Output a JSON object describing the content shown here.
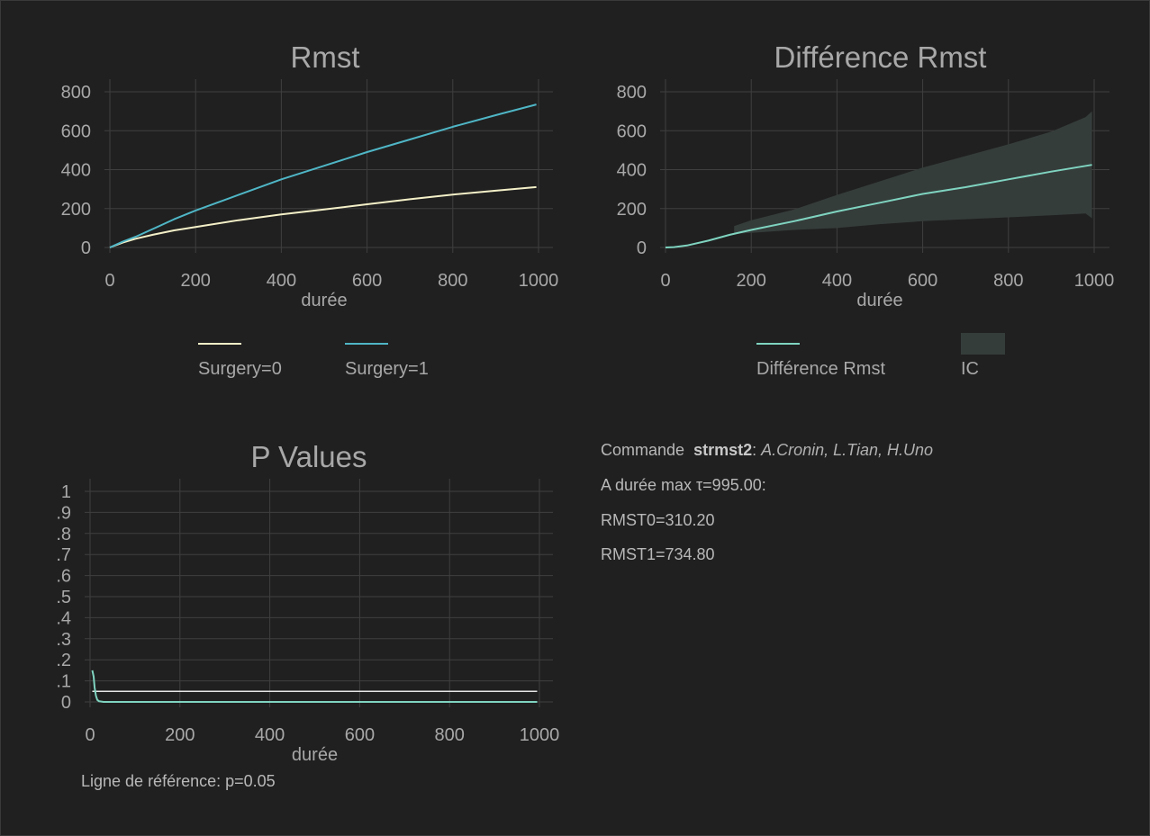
{
  "colors": {
    "background": "#202020",
    "grid": "#3f3f3f",
    "text": "#a8a8a8",
    "surgery0": "#f4f0c8",
    "surgery1": "#4fb6c6",
    "diff": "#7fd4c0",
    "ci_band": "#353d3b",
    "pvalue": "#7fd4c0",
    "refline": "#e6e6e6"
  },
  "chart_data": [
    {
      "type": "line",
      "title": "Rmst",
      "xlabel": "durée",
      "ylabel": "",
      "xlim": [
        0,
        1000
      ],
      "ylim": [
        0,
        800
      ],
      "xticks": [
        0,
        200,
        400,
        600,
        800,
        1000
      ],
      "yticks": [
        0,
        200,
        400,
        600,
        800
      ],
      "xtick_labels": [
        "0",
        "200",
        "400",
        "600",
        "800",
        "1000"
      ],
      "ytick_labels": [
        "0",
        "200",
        "400",
        "600",
        "800"
      ],
      "grid": true,
      "legend_position": "bottom",
      "series": [
        {
          "name": "Surgery=0",
          "color": "#f4f0c8",
          "x": [
            0,
            30,
            60,
            100,
            150,
            200,
            300,
            400,
            500,
            600,
            700,
            800,
            900,
            995
          ],
          "y": [
            0,
            25,
            45,
            65,
            88,
            105,
            140,
            170,
            195,
            222,
            248,
            272,
            292,
            310.2
          ]
        },
        {
          "name": "Surgery=1",
          "color": "#4fb6c6",
          "x": [
            0,
            30,
            60,
            100,
            150,
            200,
            300,
            400,
            500,
            600,
            700,
            800,
            900,
            995
          ],
          "y": [
            0,
            30,
            55,
            95,
            145,
            190,
            270,
            350,
            420,
            490,
            555,
            620,
            680,
            734.8
          ]
        }
      ]
    },
    {
      "type": "area",
      "title": "Différence Rmst",
      "xlabel": "durée",
      "ylabel": "",
      "xlim": [
        0,
        1000
      ],
      "ylim": [
        0,
        800
      ],
      "xticks": [
        0,
        200,
        400,
        600,
        800,
        1000
      ],
      "yticks": [
        0,
        200,
        400,
        600,
        800
      ],
      "xtick_labels": [
        "0",
        "200",
        "400",
        "600",
        "800",
        "1000"
      ],
      "ytick_labels": [
        "0",
        "200",
        "400",
        "600",
        "800"
      ],
      "grid": true,
      "legend_position": "bottom",
      "series": [
        {
          "name": "Différence Rmst",
          "color": "#7fd4c0",
          "x": [
            0,
            20,
            50,
            100,
            150,
            200,
            300,
            400,
            500,
            600,
            700,
            800,
            900,
            995
          ],
          "y": [
            0,
            2,
            10,
            35,
            65,
            90,
            135,
            185,
            230,
            275,
            310,
            350,
            390,
            424.6
          ]
        }
      ],
      "band": {
        "name": "IC",
        "color": "#353d3b",
        "x": [
          160,
          200,
          300,
          400,
          500,
          600,
          700,
          800,
          900,
          980,
          995
        ],
        "lower": [
          70,
          75,
          90,
          100,
          120,
          135,
          145,
          155,
          165,
          175,
          150
        ],
        "upper": [
          110,
          140,
          195,
          270,
          340,
          410,
          470,
          530,
          595,
          670,
          700
        ]
      }
    },
    {
      "type": "line",
      "title": "P Values",
      "xlabel": "durée",
      "ylabel": "",
      "xlim": [
        0,
        1000
      ],
      "ylim": [
        0,
        1
      ],
      "xticks": [
        0,
        200,
        400,
        600,
        800,
        1000
      ],
      "yticks": [
        0,
        0.1,
        0.2,
        0.3,
        0.4,
        0.5,
        0.6,
        0.7,
        0.8,
        0.9,
        1
      ],
      "xtick_labels": [
        "0",
        "200",
        "400",
        "600",
        "800",
        "1000"
      ],
      "ytick_labels": [
        "0",
        ".1",
        ".2",
        ".3",
        ".4",
        ".5",
        ".6",
        ".7",
        ".8",
        ".9",
        "1"
      ],
      "grid": true,
      "series": [
        {
          "name": "",
          "color": "#7fd4c0",
          "x": [
            5,
            8,
            10,
            13,
            16,
            20,
            30,
            50,
            100,
            995
          ],
          "y": [
            0.15,
            0.12,
            0.07,
            0.03,
            0.01,
            0.003,
            0.0,
            0.0,
            0.0,
            0.0
          ]
        }
      ],
      "reference_line": {
        "y": 0.05,
        "color": "#e6e6e6",
        "x": [
          5,
          995
        ]
      }
    }
  ],
  "notes": {
    "reference_line": "Ligne de référence: p=0.05"
  },
  "info": {
    "command_prefix": "Commande",
    "command_name": "strmst2",
    "command_colon": ":",
    "authors": "A.Cronin, L.Tian, H.Uno",
    "max_duration": "A durée max τ=995.00:",
    "rmst0": "RMST0=310.20",
    "rmst1": "RMST1=734.80"
  }
}
